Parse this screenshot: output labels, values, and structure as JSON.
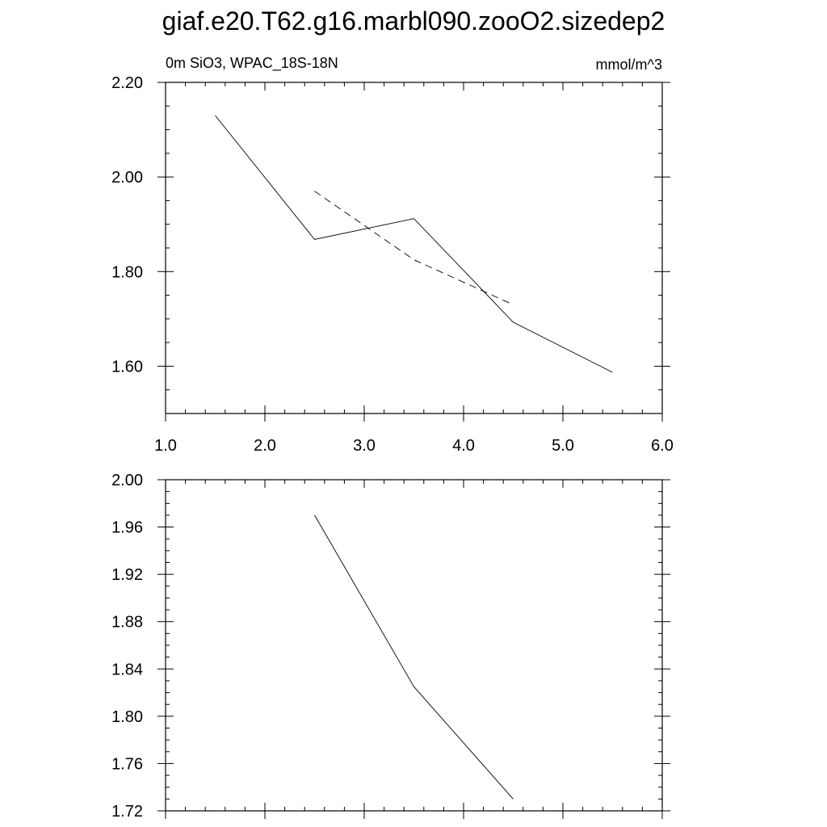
{
  "title": "giaf.e20.T62.g16.marbl090.zooO2.sizedep2",
  "chart_data": [
    {
      "type": "line",
      "left_string": "0m SiO3, WPAC_18S-18N",
      "right_string": "mmol/m^3",
      "xlim": [
        1.0,
        6.0
      ],
      "ylim": [
        1.5,
        2.2
      ],
      "x_tick_labels": [
        "1.0",
        "2.0",
        "3.0",
        "4.0",
        "5.0",
        "6.0"
      ],
      "y_tick_labels": [
        "1.60",
        "1.80",
        "2.00",
        "2.20"
      ],
      "series": [
        {
          "style": "solid",
          "x": [
            1.5,
            2.5,
            3.5,
            4.5,
            5.5
          ],
          "y": [
            2.13,
            1.868,
            1.912,
            1.693,
            1.587
          ]
        },
        {
          "style": "dashed",
          "x": [
            2.5,
            3.5,
            4.5
          ],
          "y": [
            1.97,
            1.825,
            1.73
          ]
        }
      ]
    },
    {
      "type": "line",
      "xlim": [
        1.0,
        6.0
      ],
      "ylim": [
        1.72,
        2.0
      ],
      "y_tick_labels": [
        "1.72",
        "1.76",
        "1.80",
        "1.84",
        "1.88",
        "1.92",
        "1.96",
        "2.00"
      ],
      "series": [
        {
          "style": "solid",
          "x": [
            2.5,
            3.5,
            4.5
          ],
          "y": [
            1.97,
            1.825,
            1.73
          ]
        }
      ]
    }
  ]
}
